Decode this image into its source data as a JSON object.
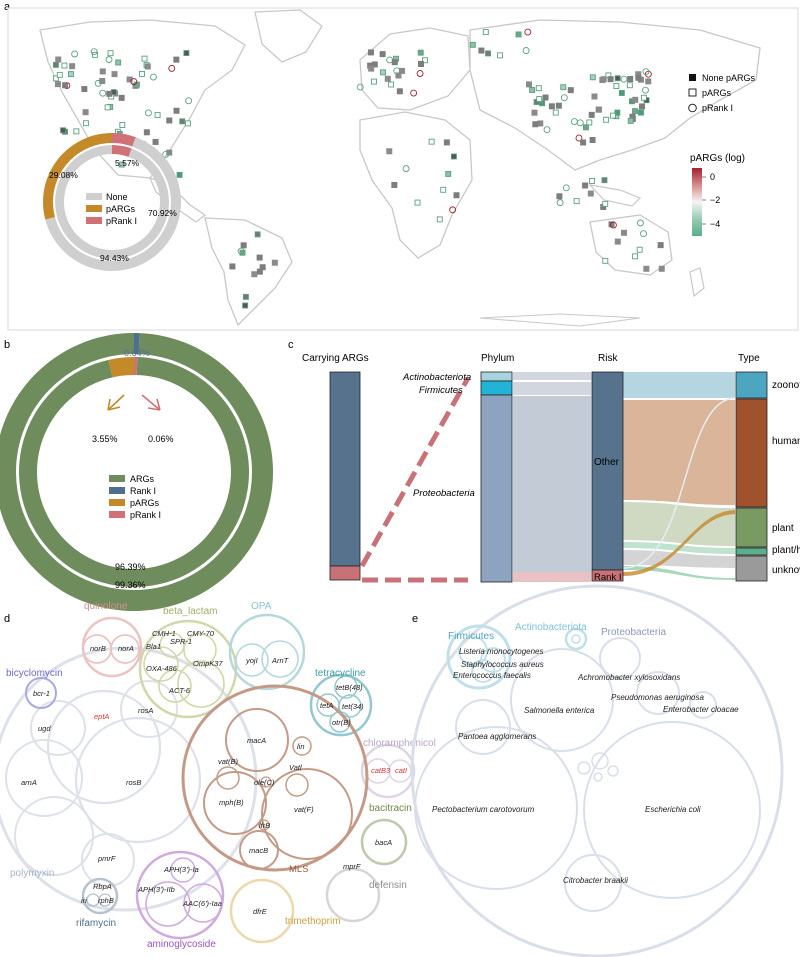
{
  "panels": {
    "a": "a",
    "b": "b",
    "c": "c",
    "d": "d",
    "e": "e"
  },
  "chart_data": [
    {
      "panel": "a",
      "type": "map",
      "legend_shapes": [
        {
          "label": "None pARGs",
          "shape": "filled-square"
        },
        {
          "label": "pARGs",
          "shape": "open-square"
        },
        {
          "label": "pRank I",
          "shape": "open-circle"
        }
      ],
      "colorbar": {
        "title": "pARGs (log)",
        "ticks": [
          "0",
          "−2",
          "−4"
        ],
        "colors": [
          "#b2182b",
          "#f7f7f7",
          "#5aae8a"
        ]
      },
      "donut": {
        "type": "pie",
        "legend": [
          "None",
          "pARGs",
          "pRank I"
        ],
        "colors": {
          "None": "#cfcfcf",
          "pARGs": "#c48a2a",
          "pRank I": "#d27078"
        },
        "outer": {
          "values": [
            70.92,
            29.08,
            5.57
          ],
          "labels": [
            "70.92%",
            "29.08%",
            "5.57%"
          ]
        },
        "inner": {
          "values": [
            94.43,
            5.57
          ],
          "labels": [
            "94.43%"
          ]
        }
      }
    },
    {
      "panel": "b",
      "type": "pie",
      "legend": [
        "ARGs",
        "Rank I",
        "pARGs",
        "pRank I"
      ],
      "colors": {
        "ARGs": "#6e8c5c",
        "Rank I": "#4f6f90",
        "pARGs": "#c48a2a",
        "pRank I": "#d27078"
      },
      "outer": {
        "values": [
          99.36,
          0.64
        ],
        "labels": [
          "99.36%",
          "0.64%"
        ]
      },
      "inner": {
        "values": [
          96.39,
          3.55,
          0.06
        ],
        "labels": [
          "96.39%",
          "3.55%",
          "0.06%"
        ]
      }
    },
    {
      "panel": "c",
      "type": "sankey",
      "columns": [
        "Carrying ARGs",
        "Phylum",
        "Risk",
        "Type"
      ],
      "phylum_labels": [
        "Actinobacteriota",
        "Firmicutes",
        "Proteobacteria"
      ],
      "risk_labels": [
        "Other",
        "Rank I"
      ],
      "type_labels": [
        "zoonotic",
        "human",
        "plant",
        "plant/human",
        "unknown"
      ],
      "type_colors": {
        "zoonotic": "#4da6c0",
        "human": "#a0522d",
        "plant": "#7a9a64",
        "plant/human": "#5aae8a",
        "unknown": "#9a9a9a"
      }
    },
    {
      "panel": "d",
      "type": "packed-circles",
      "groups": [
        {
          "name": "quinolone",
          "color": "#d78f8f",
          "genes": [
            "norB",
            "norA"
          ]
        },
        {
          "name": "beta_lactam",
          "color": "#a3ab6a",
          "genes": [
            "CMH-1",
            "CMY-70",
            "Bla1",
            "SPR-1",
            "OXA-486",
            "OmpK37",
            "ACT-6"
          ]
        },
        {
          "name": "OPA",
          "color": "#8ec2cc",
          "genes": [
            "yojI",
            "ArnT"
          ]
        },
        {
          "name": "bicyclomycin",
          "color": "#6a6acc",
          "genes": [
            "bcr-1"
          ]
        },
        {
          "name": "tetracycline",
          "color": "#3a9aa8",
          "genes": [
            "tetB(48)",
            "tetA",
            "tet(34)",
            "otr(B)"
          ]
        },
        {
          "name": "chloramphenicol",
          "color": "#b9a6c6",
          "genes": [
            "catB3",
            "catI"
          ]
        },
        {
          "name": "polymyxin",
          "color": "#a8b4cc",
          "genes": [
            "ugd",
            "eptA",
            "rosA",
            "arnA",
            "rosB",
            "pmrF"
          ]
        },
        {
          "name": "MLS",
          "color": "#9b5a42",
          "genes": [
            "macA",
            "lin",
            "vat(B)",
            "Vatl",
            "ole(C)",
            "mph(B)",
            "vat(F)",
            "lfrB",
            "macB"
          ]
        },
        {
          "name": "bacitracin",
          "color": "#6a8a46",
          "genes": [
            "bacA"
          ]
        },
        {
          "name": "defensin",
          "color": "#8f8f8f",
          "genes": [
            "mprF"
          ]
        },
        {
          "name": "rifamycin",
          "color": "#4f6f90",
          "genes": [
            "RbpA",
            "iri",
            "rphB"
          ]
        },
        {
          "name": "aminoglycoside",
          "color": "#9a55c0",
          "genes": [
            "APH(3')-Ia",
            "APH(3')-IIb",
            "AAC(6')-Iaa"
          ]
        },
        {
          "name": "trimethoprim",
          "color": "#c9a040",
          "genes": [
            "dfrE"
          ]
        }
      ]
    },
    {
      "panel": "e",
      "type": "packed-circles",
      "groups": [
        {
          "name": "Firmicutes",
          "color": "#4da6c0",
          "species": [
            "Listeria monocytogenes",
            "Staphylococcus aureus",
            "Enterococcus faecalis"
          ]
        },
        {
          "name": "Actinobacteriota",
          "color": "#7fc3d6",
          "species": []
        },
        {
          "name": "Proteobacteria",
          "color": "#8a97b8",
          "species": [
            "Achromobacter xylosoxidans",
            "Pseudomonas aeruginosa",
            "Enterobacter cloacae",
            "Salmonella enterica",
            "Pantoea agglomerans",
            "Pectobacterium carotovorum",
            "Escherichia coli",
            "Citrobacter braakii"
          ]
        }
      ]
    }
  ]
}
